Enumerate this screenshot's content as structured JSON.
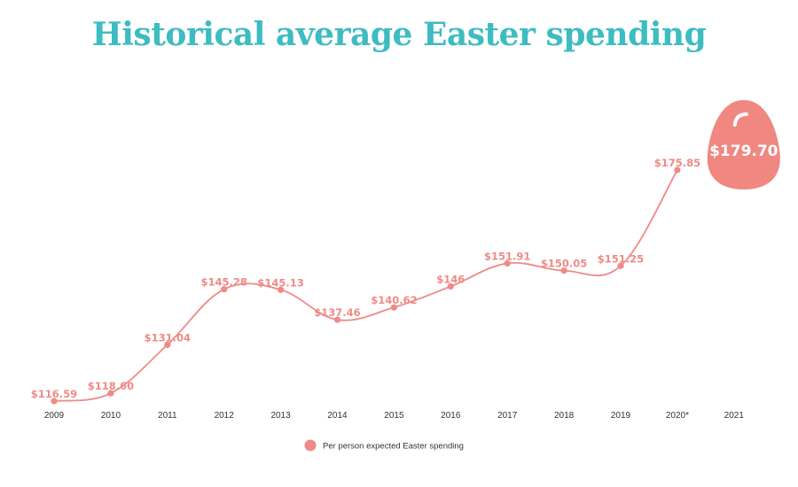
{
  "chart_data": {
    "type": "line",
    "title": "Historical average Easter spending",
    "categories": [
      "2009",
      "2010",
      "2011",
      "2012",
      "2013",
      "2014",
      "2015",
      "2016",
      "2017",
      "2018",
      "2019",
      "2020*",
      "2021"
    ],
    "series": [
      {
        "name": "Per person expected Easter spending",
        "values": [
          116.59,
          118.6,
          131.04,
          145.28,
          145.13,
          137.46,
          140.62,
          146,
          151.91,
          150.05,
          151.25,
          175.85,
          179.7
        ],
        "value_labels": [
          "$116.59",
          "$118.60",
          "$131.04",
          "$145.28",
          "$145.13",
          "$137.46",
          "$140.62",
          "$146",
          "$151.91",
          "$150.05",
          "$151.25",
          "$175.85",
          "$179.70"
        ]
      }
    ],
    "highlight": {
      "category": "2021",
      "label": "$179.70",
      "shape": "egg"
    },
    "ylim": [
      116.59,
      175.85
    ],
    "grid": false,
    "legend": "bottom-center",
    "colors": {
      "line": "#ef8a85",
      "marker": "#ef8a85",
      "egg": "#f08781",
      "title": "#3dbcc2"
    }
  }
}
